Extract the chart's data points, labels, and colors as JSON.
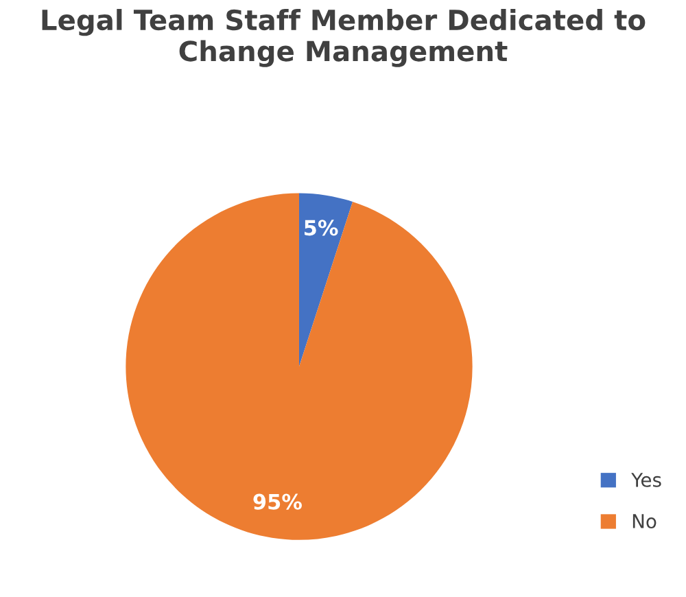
{
  "chart_data": {
    "type": "pie",
    "title": "Legal Team Staff Member Dedicated to Change Management",
    "categories": [
      "Yes",
      "No"
    ],
    "values": [
      5,
      95
    ],
    "colors": [
      "#4472c4",
      "#ed7d31"
    ],
    "value_labels": [
      "5%",
      "95%"
    ],
    "legend": "bottom right"
  }
}
